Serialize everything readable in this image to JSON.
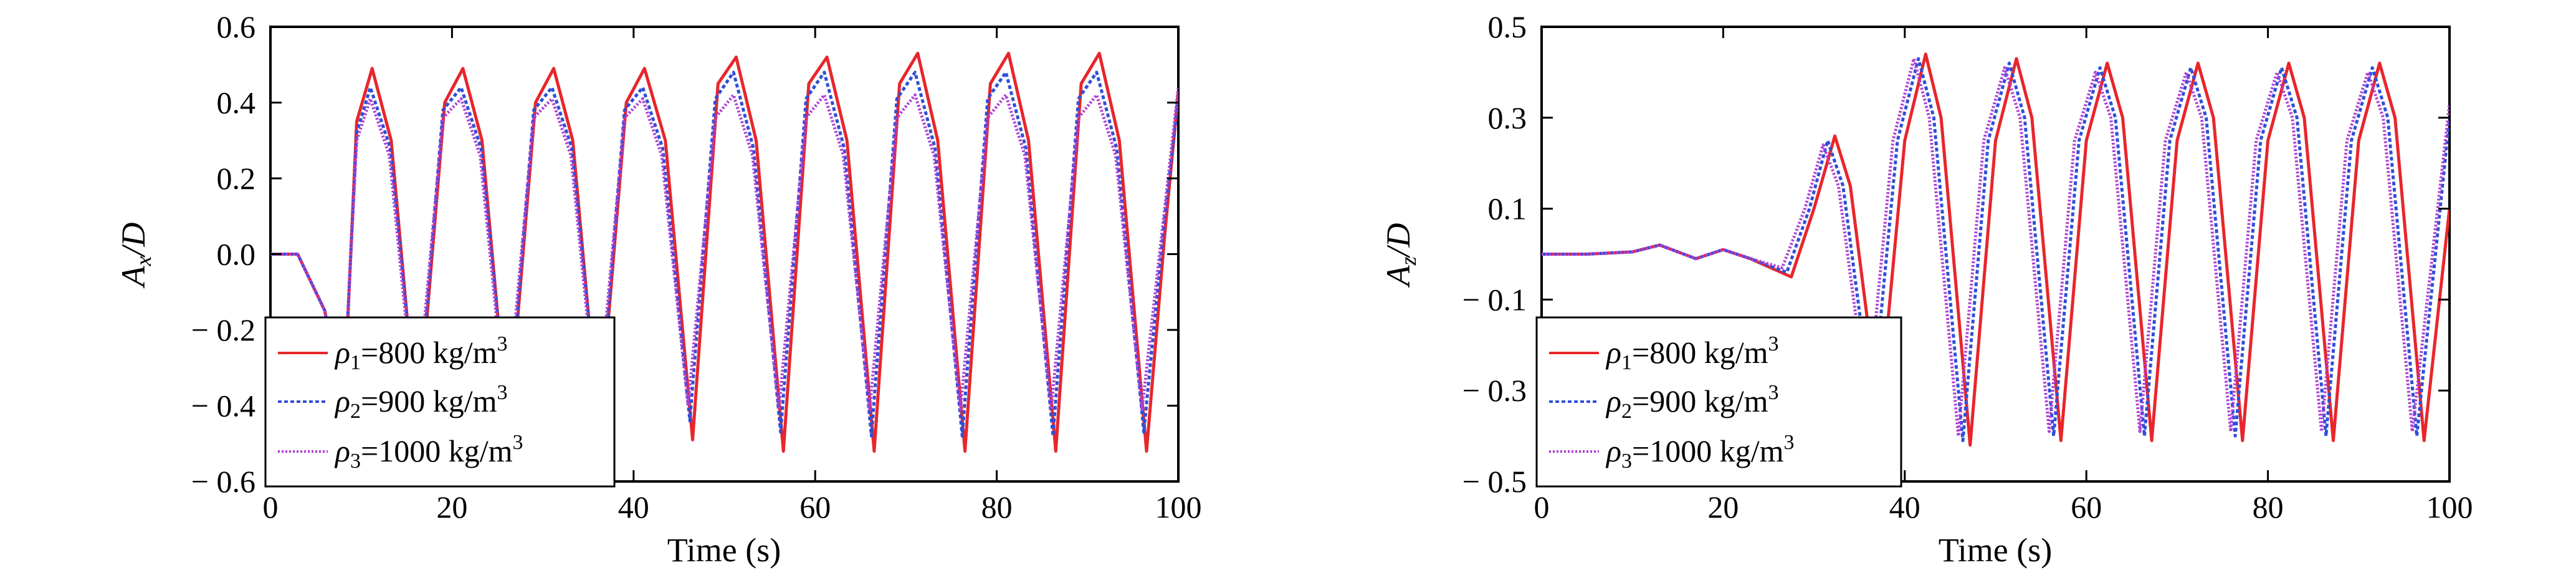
{
  "figure": {
    "panels": [
      {
        "xlabel": "Time (s)",
        "ylabel_main": "A",
        "ylabel_sub": "x",
        "ylabel_tail": "/D",
        "xticks": [
          "0",
          "20",
          "40",
          "60",
          "80",
          "100"
        ],
        "yticks": [
          "0.6",
          "0.4",
          "0.2",
          "0.0",
          "− 0.2",
          "− 0.4",
          "− 0.6"
        ],
        "legend": [
          {
            "rho": "ρ",
            "sub": "1",
            "text": "=800 kg/m",
            "sup": "3"
          },
          {
            "rho": "ρ",
            "sub": "2",
            "text": "=900 kg/m",
            "sup": "3"
          },
          {
            "rho": "ρ",
            "sub": "3",
            "text": "=1000 kg/m",
            "sup": "3"
          }
        ]
      },
      {
        "xlabel": "Time (s)",
        "ylabel_main": "A",
        "ylabel_sub": "z",
        "ylabel_tail": "/D",
        "xticks": [
          "0",
          "20",
          "40",
          "60",
          "80",
          "100"
        ],
        "yticks": [
          "0.5",
          "0.3",
          "0.1",
          "− 0.1",
          "− 0.3",
          "− 0.5"
        ],
        "legend": [
          {
            "rho": "ρ",
            "sub": "1",
            "text": "=800 kg/m",
            "sup": "3"
          },
          {
            "rho": "ρ",
            "sub": "2",
            "text": "=900 kg/m",
            "sup": "3"
          },
          {
            "rho": "ρ",
            "sub": "3",
            "text": "=1000 kg/m",
            "sup": "3"
          }
        ]
      }
    ]
  },
  "chart_data": [
    {
      "type": "line",
      "title": "",
      "xlabel": "Time (s)",
      "ylabel": "A_x/D",
      "xlim": [
        0,
        100
      ],
      "ylim": [
        -0.6,
        0.6
      ],
      "grid": false,
      "legend_position": "lower-left",
      "series": [
        {
          "name": "ρ1=800 kg/m3",
          "color": "#e8262c",
          "dash": "solid",
          "x": [
            0,
            3,
            6,
            8,
            9.5,
            11.2,
            13.3,
            16.2,
            19.2,
            21.2,
            23.3,
            26.2,
            29.2,
            31.2,
            33.3,
            36.2,
            39.2,
            41.2,
            43.5,
            46.5,
            49.3,
            51.3,
            53.5,
            56.5,
            59.3,
            61.3,
            63.5,
            66.5,
            69.3,
            71.3,
            73.5,
            76.5,
            79.3,
            81.3,
            83.5,
            86.5,
            89.3,
            91.3,
            93.5,
            96.5,
            98.5,
            100
          ],
          "y": [
            0,
            0,
            -0.15,
            -0.45,
            0.35,
            0.49,
            0.3,
            -0.47,
            0.4,
            0.49,
            0.3,
            -0.47,
            0.4,
            0.49,
            0.3,
            -0.47,
            0.4,
            0.49,
            0.3,
            -0.49,
            0.45,
            0.52,
            0.3,
            -0.52,
            0.45,
            0.52,
            0.3,
            -0.52,
            0.45,
            0.53,
            0.3,
            -0.52,
            0.45,
            0.53,
            0.3,
            -0.52,
            0.45,
            0.53,
            0.3,
            -0.52,
            0.05,
            0.43
          ]
        },
        {
          "name": "ρ2=900 kg/m3",
          "color": "#2f4fd8",
          "dash": "6 4",
          "x": [
            0,
            3,
            6,
            8,
            9.5,
            11,
            13.2,
            16.2,
            19,
            21,
            23.2,
            26.2,
            29,
            31,
            33.2,
            36.2,
            39,
            41,
            43.2,
            46.2,
            49,
            51,
            53.2,
            56.2,
            59,
            61,
            63.2,
            66.2,
            69,
            71,
            73.2,
            76.2,
            79,
            81,
            83.2,
            86.2,
            89,
            91,
            93.2,
            96.2,
            98.5,
            100
          ],
          "y": [
            0,
            0,
            -0.15,
            -0.42,
            0.32,
            0.44,
            0.28,
            -0.45,
            0.38,
            0.44,
            0.28,
            -0.45,
            0.38,
            0.44,
            0.28,
            -0.45,
            0.38,
            0.44,
            0.28,
            -0.44,
            0.41,
            0.48,
            0.28,
            -0.47,
            0.41,
            0.48,
            0.28,
            -0.48,
            0.41,
            0.48,
            0.28,
            -0.48,
            0.41,
            0.48,
            0.28,
            -0.48,
            0.41,
            0.48,
            0.28,
            -0.47,
            0.1,
            0.41
          ]
        },
        {
          "name": "ρ3=1000 kg/m3",
          "color": "#b03fd6",
          "dash": "3 3",
          "x": [
            0,
            3,
            6,
            8,
            9.5,
            11,
            13.1,
            16,
            19,
            21,
            23.1,
            26,
            29,
            31,
            33.1,
            36,
            39,
            41,
            43.1,
            46,
            49,
            51,
            53.1,
            56,
            59,
            61,
            63.1,
            66,
            69,
            71,
            73.1,
            76,
            79,
            81,
            83.1,
            86,
            89,
            91,
            93.1,
            96,
            98.5,
            100
          ],
          "y": [
            0,
            0,
            -0.15,
            -0.4,
            0.3,
            0.41,
            0.26,
            -0.43,
            0.36,
            0.41,
            0.26,
            -0.43,
            0.36,
            0.41,
            0.26,
            -0.43,
            0.36,
            0.41,
            0.26,
            -0.4,
            0.36,
            0.42,
            0.26,
            -0.41,
            0.36,
            0.42,
            0.26,
            -0.41,
            0.36,
            0.42,
            0.26,
            -0.41,
            0.36,
            0.42,
            0.26,
            -0.41,
            0.36,
            0.42,
            0.26,
            -0.41,
            0.12,
            0.44
          ]
        }
      ]
    },
    {
      "type": "line",
      "title": "",
      "xlabel": "Time (s)",
      "ylabel": "A_z/D",
      "xlim": [
        0,
        100
      ],
      "ylim": [
        -0.5,
        0.5
      ],
      "grid": false,
      "legend_position": "lower-left",
      "series": [
        {
          "name": "ρ1=800 kg/m3",
          "color": "#e8262c",
          "dash": "solid",
          "x": [
            0,
            5,
            10,
            13,
            17,
            20,
            23,
            27.5,
            30,
            32.3,
            34,
            37.2,
            40,
            42.3,
            44,
            47.2,
            50,
            52.3,
            54,
            57.2,
            60,
            62.3,
            64,
            67.2,
            70,
            72.3,
            74,
            77.2,
            80,
            82.3,
            84,
            87.2,
            90,
            92.3,
            94,
            97.2,
            100
          ],
          "y": [
            0,
            0,
            0.005,
            0.02,
            -0.01,
            0.01,
            -0.01,
            -0.05,
            0.1,
            0.26,
            0.15,
            -0.35,
            0.25,
            0.44,
            0.3,
            -0.42,
            0.25,
            0.43,
            0.3,
            -0.41,
            0.25,
            0.42,
            0.3,
            -0.41,
            0.25,
            0.42,
            0.3,
            -0.41,
            0.25,
            0.42,
            0.3,
            -0.41,
            0.25,
            0.42,
            0.3,
            -0.41,
            0.1
          ]
        },
        {
          "name": "ρ2=900 kg/m3",
          "color": "#2f4fd8",
          "dash": "6 4",
          "x": [
            0,
            5,
            10,
            13,
            17,
            20,
            23,
            27,
            29.5,
            31.5,
            33.2,
            36.4,
            39.2,
            41.5,
            43.2,
            46.4,
            49.2,
            51.5,
            53.2,
            56.4,
            59.2,
            61.5,
            63.2,
            66.4,
            69.2,
            71.5,
            73.2,
            76.4,
            79.2,
            81.5,
            83.2,
            86.4,
            89.2,
            91.5,
            93.2,
            96.4,
            100
          ],
          "y": [
            0,
            0,
            0.005,
            0.02,
            -0.01,
            0.01,
            -0.01,
            -0.04,
            0.1,
            0.25,
            0.15,
            -0.34,
            0.25,
            0.43,
            0.3,
            -0.41,
            0.25,
            0.42,
            0.3,
            -0.4,
            0.25,
            0.41,
            0.3,
            -0.4,
            0.25,
            0.41,
            0.3,
            -0.4,
            0.25,
            0.41,
            0.3,
            -0.4,
            0.25,
            0.41,
            0.3,
            -0.4,
            0.3
          ]
        },
        {
          "name": "ρ3=1000 kg/m3",
          "color": "#b03fd6",
          "dash": "3 3",
          "x": [
            0,
            5,
            10,
            13,
            17,
            20,
            23,
            26.5,
            29,
            31,
            32.7,
            35.9,
            38.7,
            41,
            42.7,
            45.9,
            48.7,
            51,
            52.7,
            55.9,
            58.7,
            61,
            62.7,
            65.9,
            68.7,
            71,
            72.7,
            75.9,
            78.7,
            81,
            82.7,
            85.9,
            88.7,
            91,
            92.7,
            95.9,
            100
          ],
          "y": [
            0,
            0,
            0.005,
            0.02,
            -0.01,
            0.01,
            -0.01,
            -0.03,
            0.1,
            0.24,
            0.15,
            -0.33,
            0.25,
            0.43,
            0.3,
            -0.4,
            0.25,
            0.41,
            0.3,
            -0.39,
            0.25,
            0.4,
            0.3,
            -0.39,
            0.25,
            0.4,
            0.3,
            -0.39,
            0.25,
            0.4,
            0.3,
            -0.39,
            0.25,
            0.4,
            0.3,
            -0.39,
            0.33
          ]
        }
      ]
    }
  ]
}
